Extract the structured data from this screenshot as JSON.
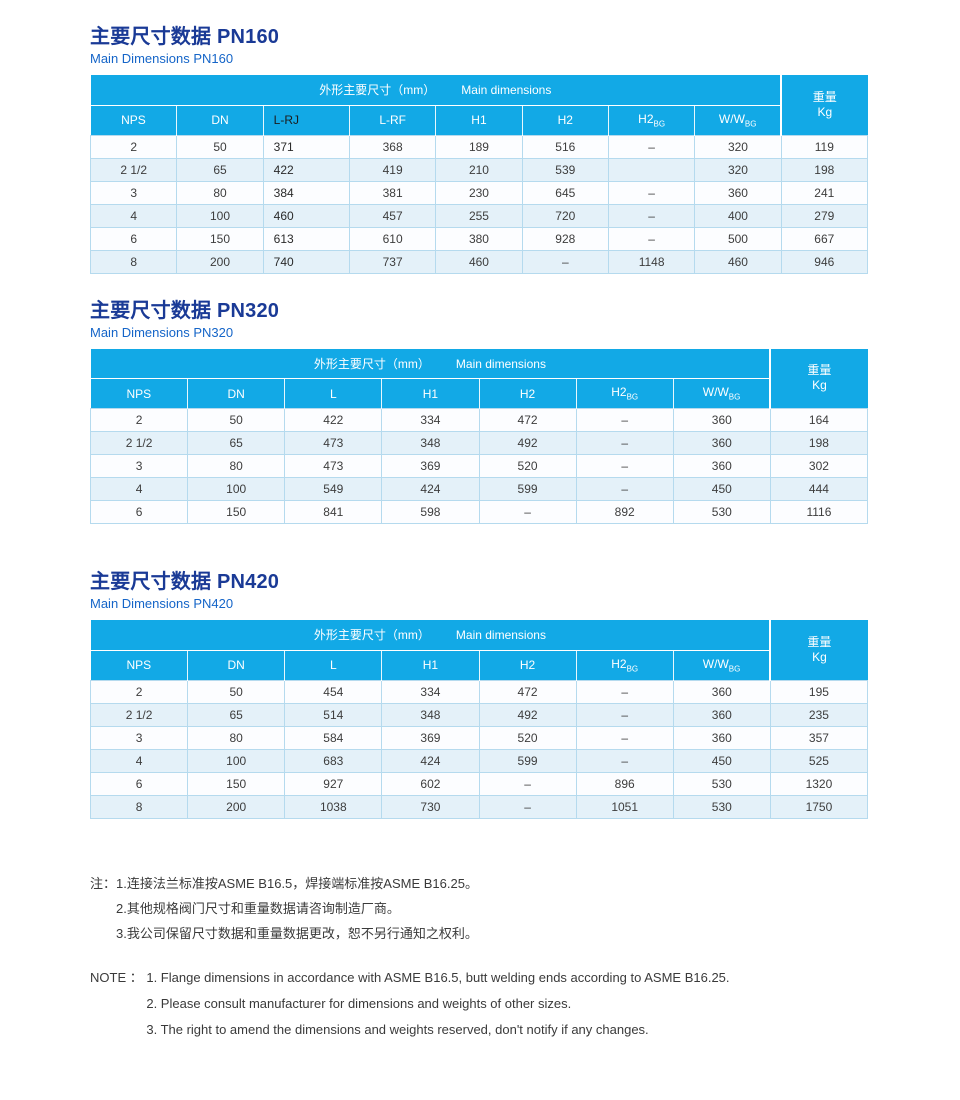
{
  "colors": {
    "header_blue": "#12a9e6",
    "title_navy": "#1a3a96",
    "subtitle_blue": "#1565c8",
    "row_stripe": "#e4f1f9",
    "row_white": "#fcfdff",
    "border_blue": "#b5daee",
    "text_dark": "#3d3d3d"
  },
  "sections": [
    {
      "title_zh": "主要尺寸数据 PN160",
      "title_en": "Main Dimensions PN160",
      "span_header_zh": "外形主要尺寸（mm）",
      "span_header_en": "Main dimensions",
      "weight_label": "重量",
      "weight_unit": "Kg",
      "columns": [
        {
          "text": "NPS"
        },
        {
          "text": "DN"
        },
        {
          "text": "L-RJ",
          "dark": true,
          "align": "left"
        },
        {
          "text": "L-RF"
        },
        {
          "text": "H1"
        },
        {
          "text": "H2"
        },
        {
          "text": "H2",
          "sub": "BG"
        },
        {
          "text": "W/W",
          "sub": "BG"
        }
      ],
      "rows": [
        [
          "2",
          "50",
          "371",
          "368",
          "189",
          "516",
          "–",
          "320",
          "119"
        ],
        [
          "2 1/2",
          "65",
          "422",
          "419",
          "210",
          "539",
          "",
          "320",
          "198"
        ],
        [
          "3",
          "80",
          "384",
          "381",
          "230",
          "645",
          "–",
          "360",
          "241"
        ],
        [
          "4",
          "100",
          "460",
          "457",
          "255",
          "720",
          "–",
          "400",
          "279"
        ],
        [
          "6",
          "150",
          "613",
          "610",
          "380",
          "928",
          "–",
          "500",
          "667"
        ],
        [
          "8",
          "200",
          "740",
          "737",
          "460",
          "–",
          "1148",
          "460",
          "946"
        ]
      ]
    },
    {
      "title_zh": "主要尺寸数据 PN320",
      "title_en": "Main Dimensions PN320",
      "span_header_zh": "外形主要尺寸（mm）",
      "span_header_en": "Main dimensions",
      "weight_label": "重量",
      "weight_unit": "Kg",
      "columns": [
        {
          "text": "NPS"
        },
        {
          "text": "DN"
        },
        {
          "text": "L"
        },
        {
          "text": "H1"
        },
        {
          "text": "H2"
        },
        {
          "text": "H2",
          "sub": "BG"
        },
        {
          "text": "W/W",
          "sub": "BG"
        }
      ],
      "rows": [
        [
          "2",
          "50",
          "422",
          "334",
          "472",
          "–",
          "360",
          "164"
        ],
        [
          "2 1/2",
          "65",
          "473",
          "348",
          "492",
          "–",
          "360",
          "198"
        ],
        [
          "3",
          "80",
          "473",
          "369",
          "520",
          "–",
          "360",
          "302"
        ],
        [
          "4",
          "100",
          "549",
          "424",
          "599",
          "–",
          "450",
          "444"
        ],
        [
          "6",
          "150",
          "841",
          "598",
          "–",
          "892",
          "530",
          "1116"
        ]
      ]
    },
    {
      "title_zh": "主要尺寸数据 PN420",
      "title_en": "Main Dimensions PN420",
      "span_header_zh": "外形主要尺寸（mm）",
      "span_header_en": "Main dimensions",
      "weight_label": "重量",
      "weight_unit": "Kg",
      "columns": [
        {
          "text": "NPS"
        },
        {
          "text": "DN"
        },
        {
          "text": "L"
        },
        {
          "text": "H1"
        },
        {
          "text": "H2"
        },
        {
          "text": "H2",
          "sub": "BG"
        },
        {
          "text": "W/W",
          "sub": "BG"
        }
      ],
      "rows": [
        [
          "2",
          "50",
          "454",
          "334",
          "472",
          "–",
          "360",
          "195"
        ],
        [
          "2 1/2",
          "65",
          "514",
          "348",
          "492",
          "–",
          "360",
          "235"
        ],
        [
          "3",
          "80",
          "584",
          "369",
          "520",
          "–",
          "360",
          "357"
        ],
        [
          "4",
          "100",
          "683",
          "424",
          "599",
          "–",
          "450",
          "525"
        ],
        [
          "6",
          "150",
          "927",
          "602",
          "–",
          "896",
          "530",
          "1320"
        ],
        [
          "8",
          "200",
          "1038",
          "730",
          "–",
          "1051",
          "530",
          "1750"
        ]
      ]
    }
  ],
  "notes_zh": {
    "label": "注：",
    "items": [
      "1.连接法兰标准按ASME B16.5，焊接端标准按ASME B16.25。",
      "2.其他规格阀门尺寸和重量数据请咨询制造厂商。",
      "3.我公司保留尺寸数据和重量数据更改，恕不另行通知之权利。"
    ]
  },
  "notes_en": {
    "label": "NOTE ： ",
    "items": [
      "1. Flange dimensions in accordance with ASME B16.5, butt welding ends according to ASME B16.25.",
      "2. Please consult manufacturer for dimensions and weights of other sizes.",
      "3. The right to amend the dimensions and weights reserved, don't notify if any changes."
    ]
  }
}
